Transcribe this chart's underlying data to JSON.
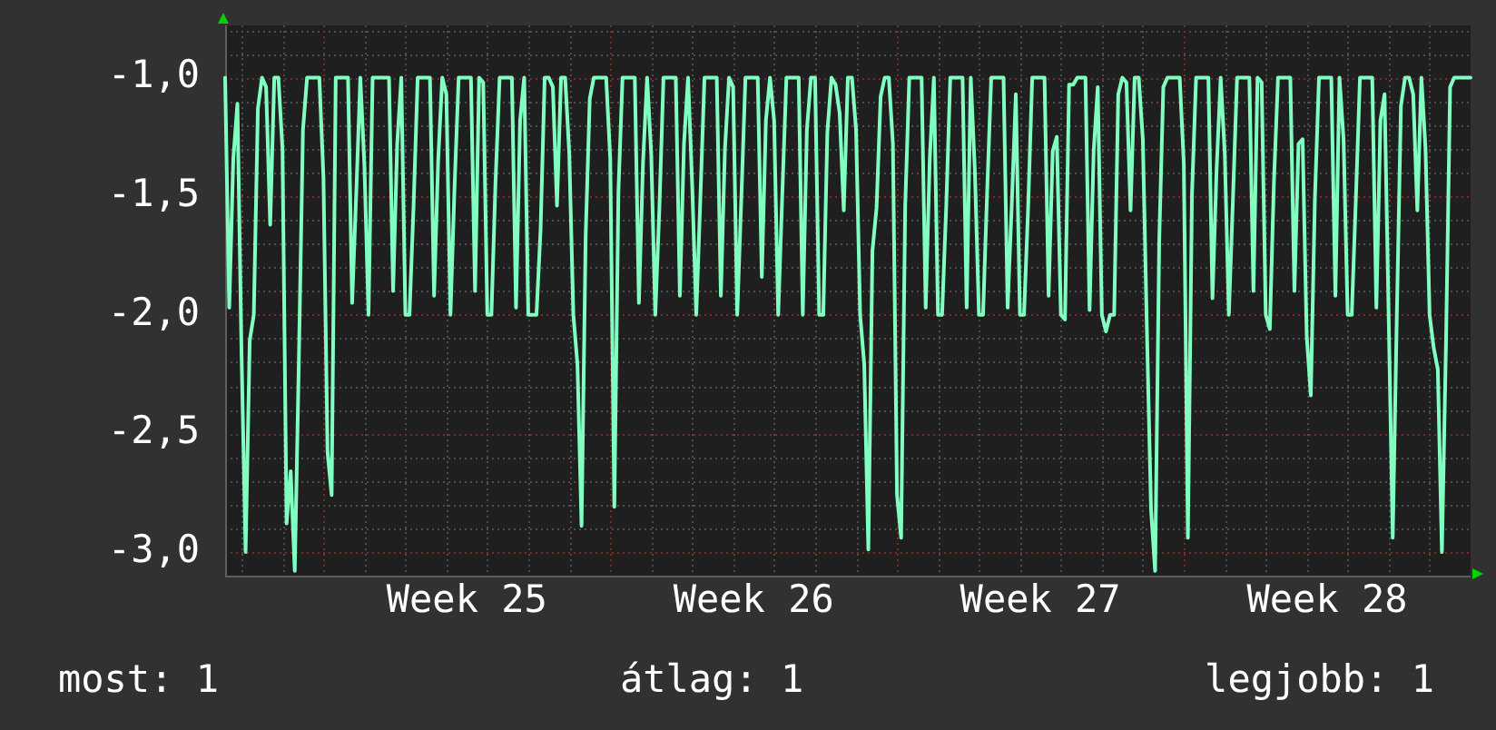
{
  "chart_data": {
    "type": "line",
    "color": "#80ffc0",
    "categories": [
      null,
      null,
      null,
      null,
      null,
      null,
      null,
      null,
      null,
      null,
      null,
      null,
      null,
      null,
      null,
      null,
      null,
      null,
      null,
      null,
      null,
      null,
      null,
      null,
      null,
      null,
      null,
      null,
      null,
      null,
      null,
      null,
      null,
      null,
      null,
      null,
      null,
      null,
      null,
      null,
      null,
      null,
      null,
      null,
      null,
      null,
      null,
      null,
      null,
      null,
      null,
      null,
      null,
      null,
      null,
      null,
      null,
      null,
      null,
      "Week 25",
      null,
      null,
      null,
      null,
      null,
      null,
      null,
      null,
      null,
      null,
      null,
      null,
      null,
      null,
      null,
      null,
      null,
      null,
      null,
      null,
      null,
      null,
      null,
      null,
      null,
      null,
      null,
      null,
      null,
      null,
      null,
      null,
      null,
      null,
      null,
      null,
      null,
      null,
      null,
      null,
      null,
      null,
      null,
      null,
      null,
      null,
      null,
      null,
      null,
      null,
      null,
      null,
      null,
      null,
      null,
      null,
      null,
      null,
      null,
      null,
      null,
      null,
      null,
      null,
      null,
      null,
      null,
      null,
      null,
      "Week 26",
      null,
      null,
      null,
      null,
      null,
      null,
      null,
      null,
      null,
      null,
      null,
      null,
      null,
      null,
      null,
      null,
      null,
      null,
      null,
      null,
      null,
      null,
      null,
      null,
      null,
      null,
      null,
      null,
      null,
      null,
      null,
      null,
      null,
      null,
      null,
      null,
      null,
      null,
      null,
      null,
      null,
      null,
      null,
      null,
      null,
      null,
      null,
      null,
      null,
      null,
      null,
      null,
      null,
      null,
      null,
      null,
      null,
      null,
      null,
      null,
      null,
      null,
      null,
      null,
      null,
      null,
      null,
      null,
      null,
      "Week 27",
      null,
      null,
      null,
      null,
      null,
      null,
      null,
      null,
      null,
      null,
      null,
      null,
      null,
      null,
      null,
      null,
      null,
      null,
      null,
      null,
      null,
      null,
      null,
      null,
      null,
      null,
      null,
      null,
      null,
      null,
      null,
      null,
      null,
      null,
      null,
      null,
      null,
      null,
      null,
      null,
      null,
      null,
      null,
      null,
      null,
      null,
      null,
      null,
      null,
      null,
      null,
      null,
      null,
      null,
      null,
      null,
      null,
      null,
      null,
      null,
      null,
      null,
      null,
      null,
      null,
      null,
      null,
      null,
      null,
      "Week 28",
      null,
      null,
      null,
      null,
      null,
      null,
      null,
      null,
      null,
      null,
      null,
      null,
      null,
      null,
      null,
      null,
      null,
      null,
      null,
      null,
      null,
      null,
      null,
      null,
      null,
      null,
      null,
      null,
      null,
      null,
      null,
      null,
      null,
      null,
      null
    ],
    "values": [
      -1,
      -1.97,
      -1.34,
      -1.11,
      -2.16,
      -3.0,
      -2.11,
      -2.0,
      -1.13,
      -1,
      -1.04,
      -1.62,
      -1,
      -1,
      -1.3,
      -2.88,
      -2.66,
      -3.08,
      -2.19,
      -1.22,
      -1,
      -1,
      -1,
      -1,
      -1.42,
      -2.58,
      -2.76,
      -1,
      -1,
      -1,
      -1,
      -1.95,
      -1.49,
      -1,
      -1.37,
      -2,
      -1,
      -1,
      -1,
      -1,
      -1,
      -1.9,
      -1.28,
      -1,
      -2,
      -2,
      -1.54,
      -1,
      -1,
      -1,
      -1,
      -1.92,
      -1.35,
      -1,
      -1.07,
      -2,
      -1.46,
      -1,
      -1,
      -1,
      -1,
      -1.9,
      -1,
      -1.02,
      -2,
      -2,
      -1.44,
      -1,
      -1,
      -1,
      -1,
      -1.97,
      -1.18,
      -1,
      -2,
      -2,
      -2,
      -1.64,
      -1,
      -1,
      -1.04,
      -1.54,
      -1,
      -1,
      -1.32,
      -2,
      -2.21,
      -2.89,
      -1.67,
      -1.09,
      -1,
      -1,
      -1,
      -1,
      -1.34,
      -2.81,
      -1.48,
      -1,
      -1,
      -1,
      -1,
      -1.95,
      -1.36,
      -1,
      -1.32,
      -2,
      -1.55,
      -1,
      -1,
      -1,
      -1,
      -1.92,
      -1.28,
      -1,
      -1.45,
      -2,
      -1.51,
      -1,
      -1,
      -1,
      -1,
      -1.92,
      -1.3,
      -1,
      -1.04,
      -2,
      -1.51,
      -1,
      -1,
      -1,
      -1,
      -1.84,
      -1.18,
      -1,
      -1.18,
      -2,
      -1.49,
      -1,
      -1,
      -1,
      -1,
      -2,
      -1.22,
      -1,
      -1,
      -2,
      -2,
      -1.23,
      -1,
      -1.03,
      -1.15,
      -1.56,
      -1,
      -1,
      -1.22,
      -2,
      -2.21,
      -2.99,
      -1.73,
      -1.55,
      -1.08,
      -1,
      -1,
      -1.28,
      -2.76,
      -2.94,
      -1.54,
      -1,
      -1,
      -1,
      -1,
      -1.97,
      -1.34,
      -1,
      -2,
      -2,
      -1.55,
      -1,
      -1,
      -1,
      -1,
      -1.97,
      -1,
      -1.39,
      -2,
      -2,
      -1.48,
      -1,
      -1,
      -1,
      -1,
      -1.97,
      -1.54,
      -1.07,
      -2,
      -2,
      -1.55,
      -1,
      -1,
      -1,
      -1,
      -1.92,
      -1.31,
      -1.25,
      -2,
      -2.02,
      -1.03,
      -1.03,
      -1,
      -1,
      -1,
      -1.98,
      -1.31,
      -1.04,
      -2,
      -2.07,
      -2,
      -2,
      -1.07,
      -1,
      -1.02,
      -1.56,
      -1,
      -1,
      -1.26,
      -2.07,
      -2.82,
      -3.08,
      -1.69,
      -1.04,
      -1,
      -1,
      -1,
      -1,
      -1.36,
      -2.94,
      -1.49,
      -1,
      -1,
      -1,
      -1,
      -1.93,
      -1.39,
      -1,
      -1.32,
      -2,
      -1.51,
      -1,
      -1,
      -1,
      -1,
      -1.9,
      -1,
      -1.02,
      -2,
      -2.06,
      -1.44,
      -1,
      -1,
      -1,
      -1,
      -1.9,
      -1.28,
      -1.26,
      -2.09,
      -2.34,
      -1.51,
      -1,
      -1,
      -1,
      -1,
      -1.92,
      -1,
      -1.26,
      -2,
      -2,
      -1.51,
      -1,
      -1,
      -1,
      -1,
      -1.97,
      -1.18,
      -1.07,
      -2,
      -2.94,
      -2,
      -1.12,
      -1,
      -1,
      -1.07,
      -1.56,
      -1,
      -1.3,
      -2,
      -2.14,
      -2.23,
      -3,
      -2.12,
      -1.04,
      -1,
      -1,
      -1,
      -1,
      -1
    ],
    "ylim": [
      -3.1,
      -0.78
    ],
    "yticks": [
      {
        "value": -0.8,
        "label": null
      },
      {
        "value": -0.9,
        "label": null
      },
      {
        "value": -1,
        "label": "-1,0"
      },
      {
        "value": -1.1,
        "label": null
      },
      {
        "value": -1.2,
        "label": null
      },
      {
        "value": -1.3,
        "label": null
      },
      {
        "value": -1.4,
        "label": null
      },
      {
        "value": -1.5,
        "label": "-1,5"
      },
      {
        "value": -1.6,
        "label": null
      },
      {
        "value": -1.7,
        "label": null
      },
      {
        "value": -1.8,
        "label": null
      },
      {
        "value": -1.9,
        "label": null
      },
      {
        "value": -2,
        "label": "-2,0"
      },
      {
        "value": -2.1,
        "label": null
      },
      {
        "value": -2.2,
        "label": null
      },
      {
        "value": -2.3,
        "label": null
      },
      {
        "value": -2.4,
        "label": null
      },
      {
        "value": -2.5,
        "label": "-2,5"
      },
      {
        "value": -2.6,
        "label": null
      },
      {
        "value": -2.7,
        "label": null
      },
      {
        "value": -2.8,
        "label": null
      },
      {
        "value": -2.9,
        "label": null
      },
      {
        "value": -3,
        "label": "-3,0"
      }
    ],
    "grid": true,
    "legend": false,
    "annotations": [
      "most: 1",
      "átlag: 1",
      "legjobb: 1"
    ]
  }
}
